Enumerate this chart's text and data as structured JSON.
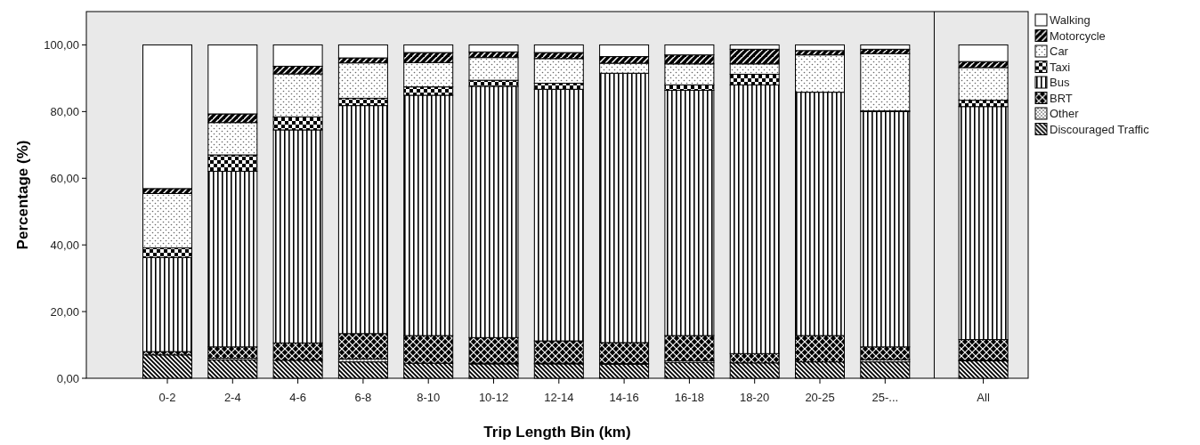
{
  "chart_data": {
    "type": "bar",
    "stacked": true,
    "xlabel": "Trip Length Bin (km)",
    "ylabel": "Percentage (%)",
    "categories": [
      "0-2",
      "2-4",
      "4-6",
      "6-8",
      "8-10",
      "10-12",
      "12-14",
      "14-16",
      "16-18",
      "18-20",
      "20-25",
      "25-...",
      "All"
    ],
    "ylim": [
      0,
      110
    ],
    "yticks": [
      {
        "value": 0,
        "label": "0,00"
      },
      {
        "value": 20,
        "label": "20,00"
      },
      {
        "value": 40,
        "label": "40,00"
      },
      {
        "value": 60,
        "label": "60,00"
      },
      {
        "value": 80,
        "label": "80,00"
      },
      {
        "value": 100,
        "label": "100,00"
      }
    ],
    "grid": false,
    "legend": "right",
    "series": [
      {
        "name": "Discouraged Traffic",
        "color": "#000000",
        "values": [
          7.0,
          5.5,
          5.4,
          4.9,
          4.5,
          4.3,
          4.3,
          4.2,
          4.7,
          4.6,
          4.9,
          4.9,
          5.2
        ]
      },
      {
        "name": "Other",
        "color": "#000000",
        "values": [
          null,
          0.5,
          null,
          0.9,
          null,
          0.2,
          0.2,
          0.2,
          0.5,
          null,
          null,
          0.7,
          0.2
        ]
      },
      {
        "name": "BRT",
        "color": "#000000",
        "values": [
          1.0,
          3.4,
          5.2,
          7.6,
          8.3,
          7.7,
          6.7,
          6.3,
          7.6,
          2.8,
          7.9,
          3.8,
          6.2
        ]
      },
      {
        "name": "Bus",
        "color": "#000000",
        "values": [
          28.2,
          52.7,
          63.9,
          68.4,
          72.1,
          75.4,
          75.5,
          80.8,
          73.6,
          80.6,
          73.0,
          70.6,
          69.9
        ]
      },
      {
        "name": "Taxi",
        "color": "#000000",
        "values": [
          2.9,
          4.9,
          3.9,
          2.2,
          2.5,
          1.8,
          1.8,
          null,
          1.6,
          3.2,
          null,
          0.2,
          1.9
        ]
      },
      {
        "name": "Car",
        "color": "#000000",
        "values": [
          16.3,
          9.7,
          12.9,
          10.6,
          7.3,
          6.8,
          7.4,
          3.0,
          6.3,
          3.1,
          11.2,
          17.2,
          9.8
        ]
      },
      {
        "name": "Motorcycle",
        "color": "#000000",
        "values": [
          1.5,
          2.6,
          2.3,
          1.5,
          3.0,
          1.7,
          1.8,
          2.0,
          2.7,
          4.4,
          1.3,
          1.3,
          1.8
        ]
      },
      {
        "name": "Walking",
        "color": "#ffffff",
        "values": [
          43.1,
          20.7,
          6.4,
          3.9,
          2.3,
          2.1,
          2.3,
          3.5,
          3.0,
          1.3,
          1.7,
          1.3,
          5.0
        ]
      }
    ]
  }
}
